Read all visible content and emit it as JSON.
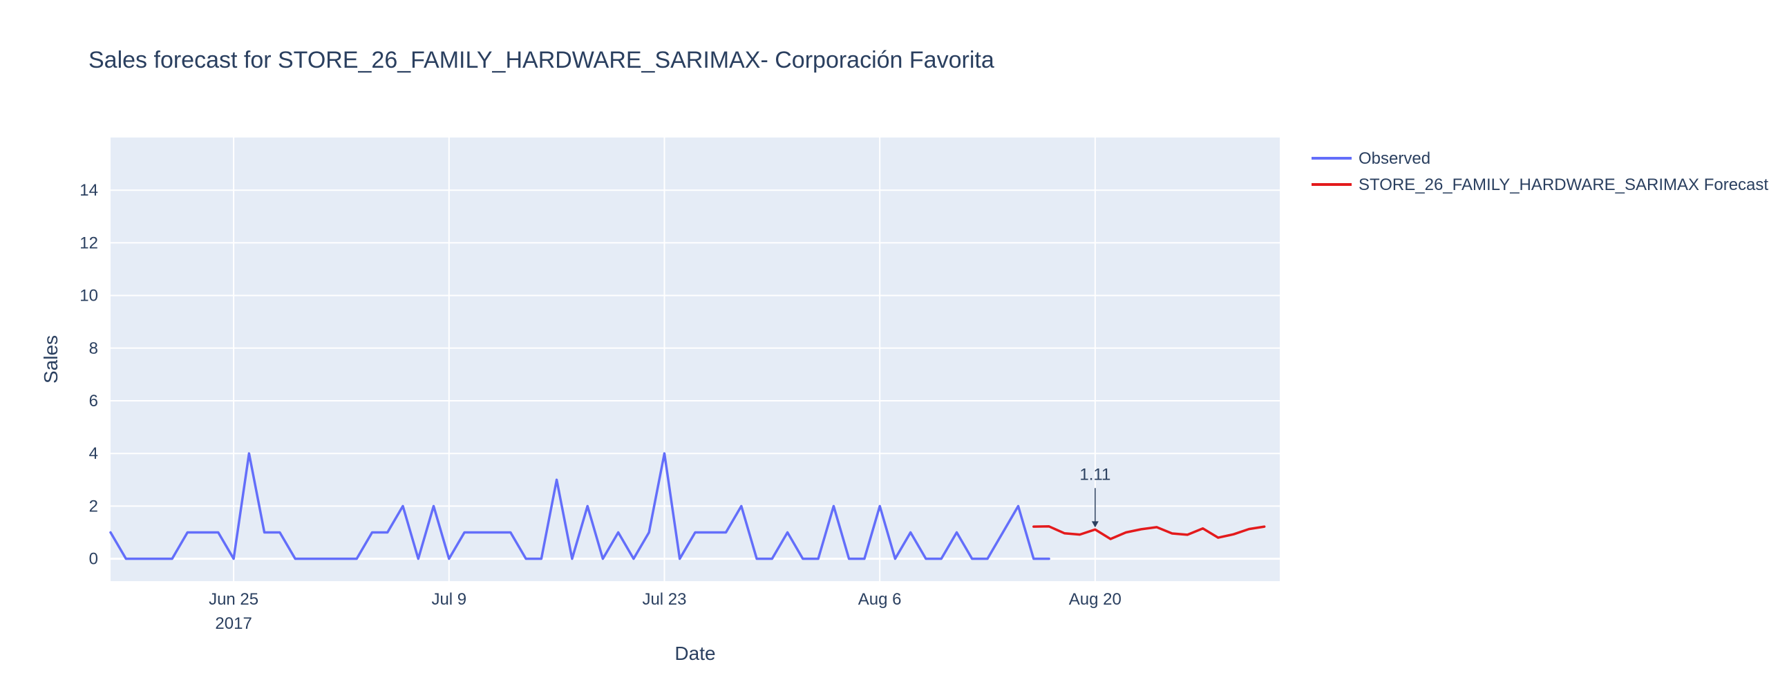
{
  "chart_data": {
    "type": "line",
    "title": "Sales forecast for STORE_26_FAMILY_HARDWARE_SARIMAX- Corporación Favorita",
    "xlabel": "Date",
    "ylabel": "Sales",
    "x_range": [
      "2017-06-17",
      "2017-09-01"
    ],
    "ylim": [
      -0.85,
      16
    ],
    "x_ticks": [
      {
        "date": "2017-06-25",
        "label": "Jun 25",
        "sublabel": "2017"
      },
      {
        "date": "2017-07-09",
        "label": "Jul 9",
        "sublabel": ""
      },
      {
        "date": "2017-07-23",
        "label": "Jul 23",
        "sublabel": ""
      },
      {
        "date": "2017-08-06",
        "label": "Aug 6",
        "sublabel": ""
      },
      {
        "date": "2017-08-20",
        "label": "Aug 20",
        "sublabel": ""
      }
    ],
    "y_ticks": [
      0,
      2,
      4,
      6,
      8,
      10,
      12,
      14
    ],
    "grid": true,
    "legend_position": "top-right",
    "series": [
      {
        "name": "Observed",
        "color": "#636efa",
        "start_date": "2017-06-17",
        "values": [
          1,
          0,
          0,
          0,
          0,
          1,
          1,
          1,
          0,
          4,
          1,
          1,
          0,
          0,
          0,
          0,
          0,
          1,
          1,
          2,
          0,
          2,
          0,
          1,
          1,
          1,
          1,
          0,
          0,
          3,
          0,
          2,
          0,
          1,
          0,
          1,
          4,
          0,
          1,
          1,
          1,
          2,
          0,
          0,
          1,
          0,
          0,
          2,
          0,
          0,
          2,
          0,
          1,
          0,
          0,
          1,
          0,
          0,
          1,
          2,
          0,
          0
        ]
      },
      {
        "name": "STORE_26_FAMILY_HARDWARE_SARIMAX Forecast",
        "color": "#e31a1c",
        "start_date": "2017-08-16",
        "values": [
          1.22,
          1.23,
          0.97,
          0.92,
          1.11,
          0.75,
          1.0,
          1.12,
          1.2,
          0.96,
          0.91,
          1.15,
          0.8,
          0.93,
          1.13,
          1.22
        ]
      }
    ],
    "annotations": [
      {
        "date": "2017-08-20",
        "y": 1.11,
        "text": "1.11"
      }
    ]
  }
}
